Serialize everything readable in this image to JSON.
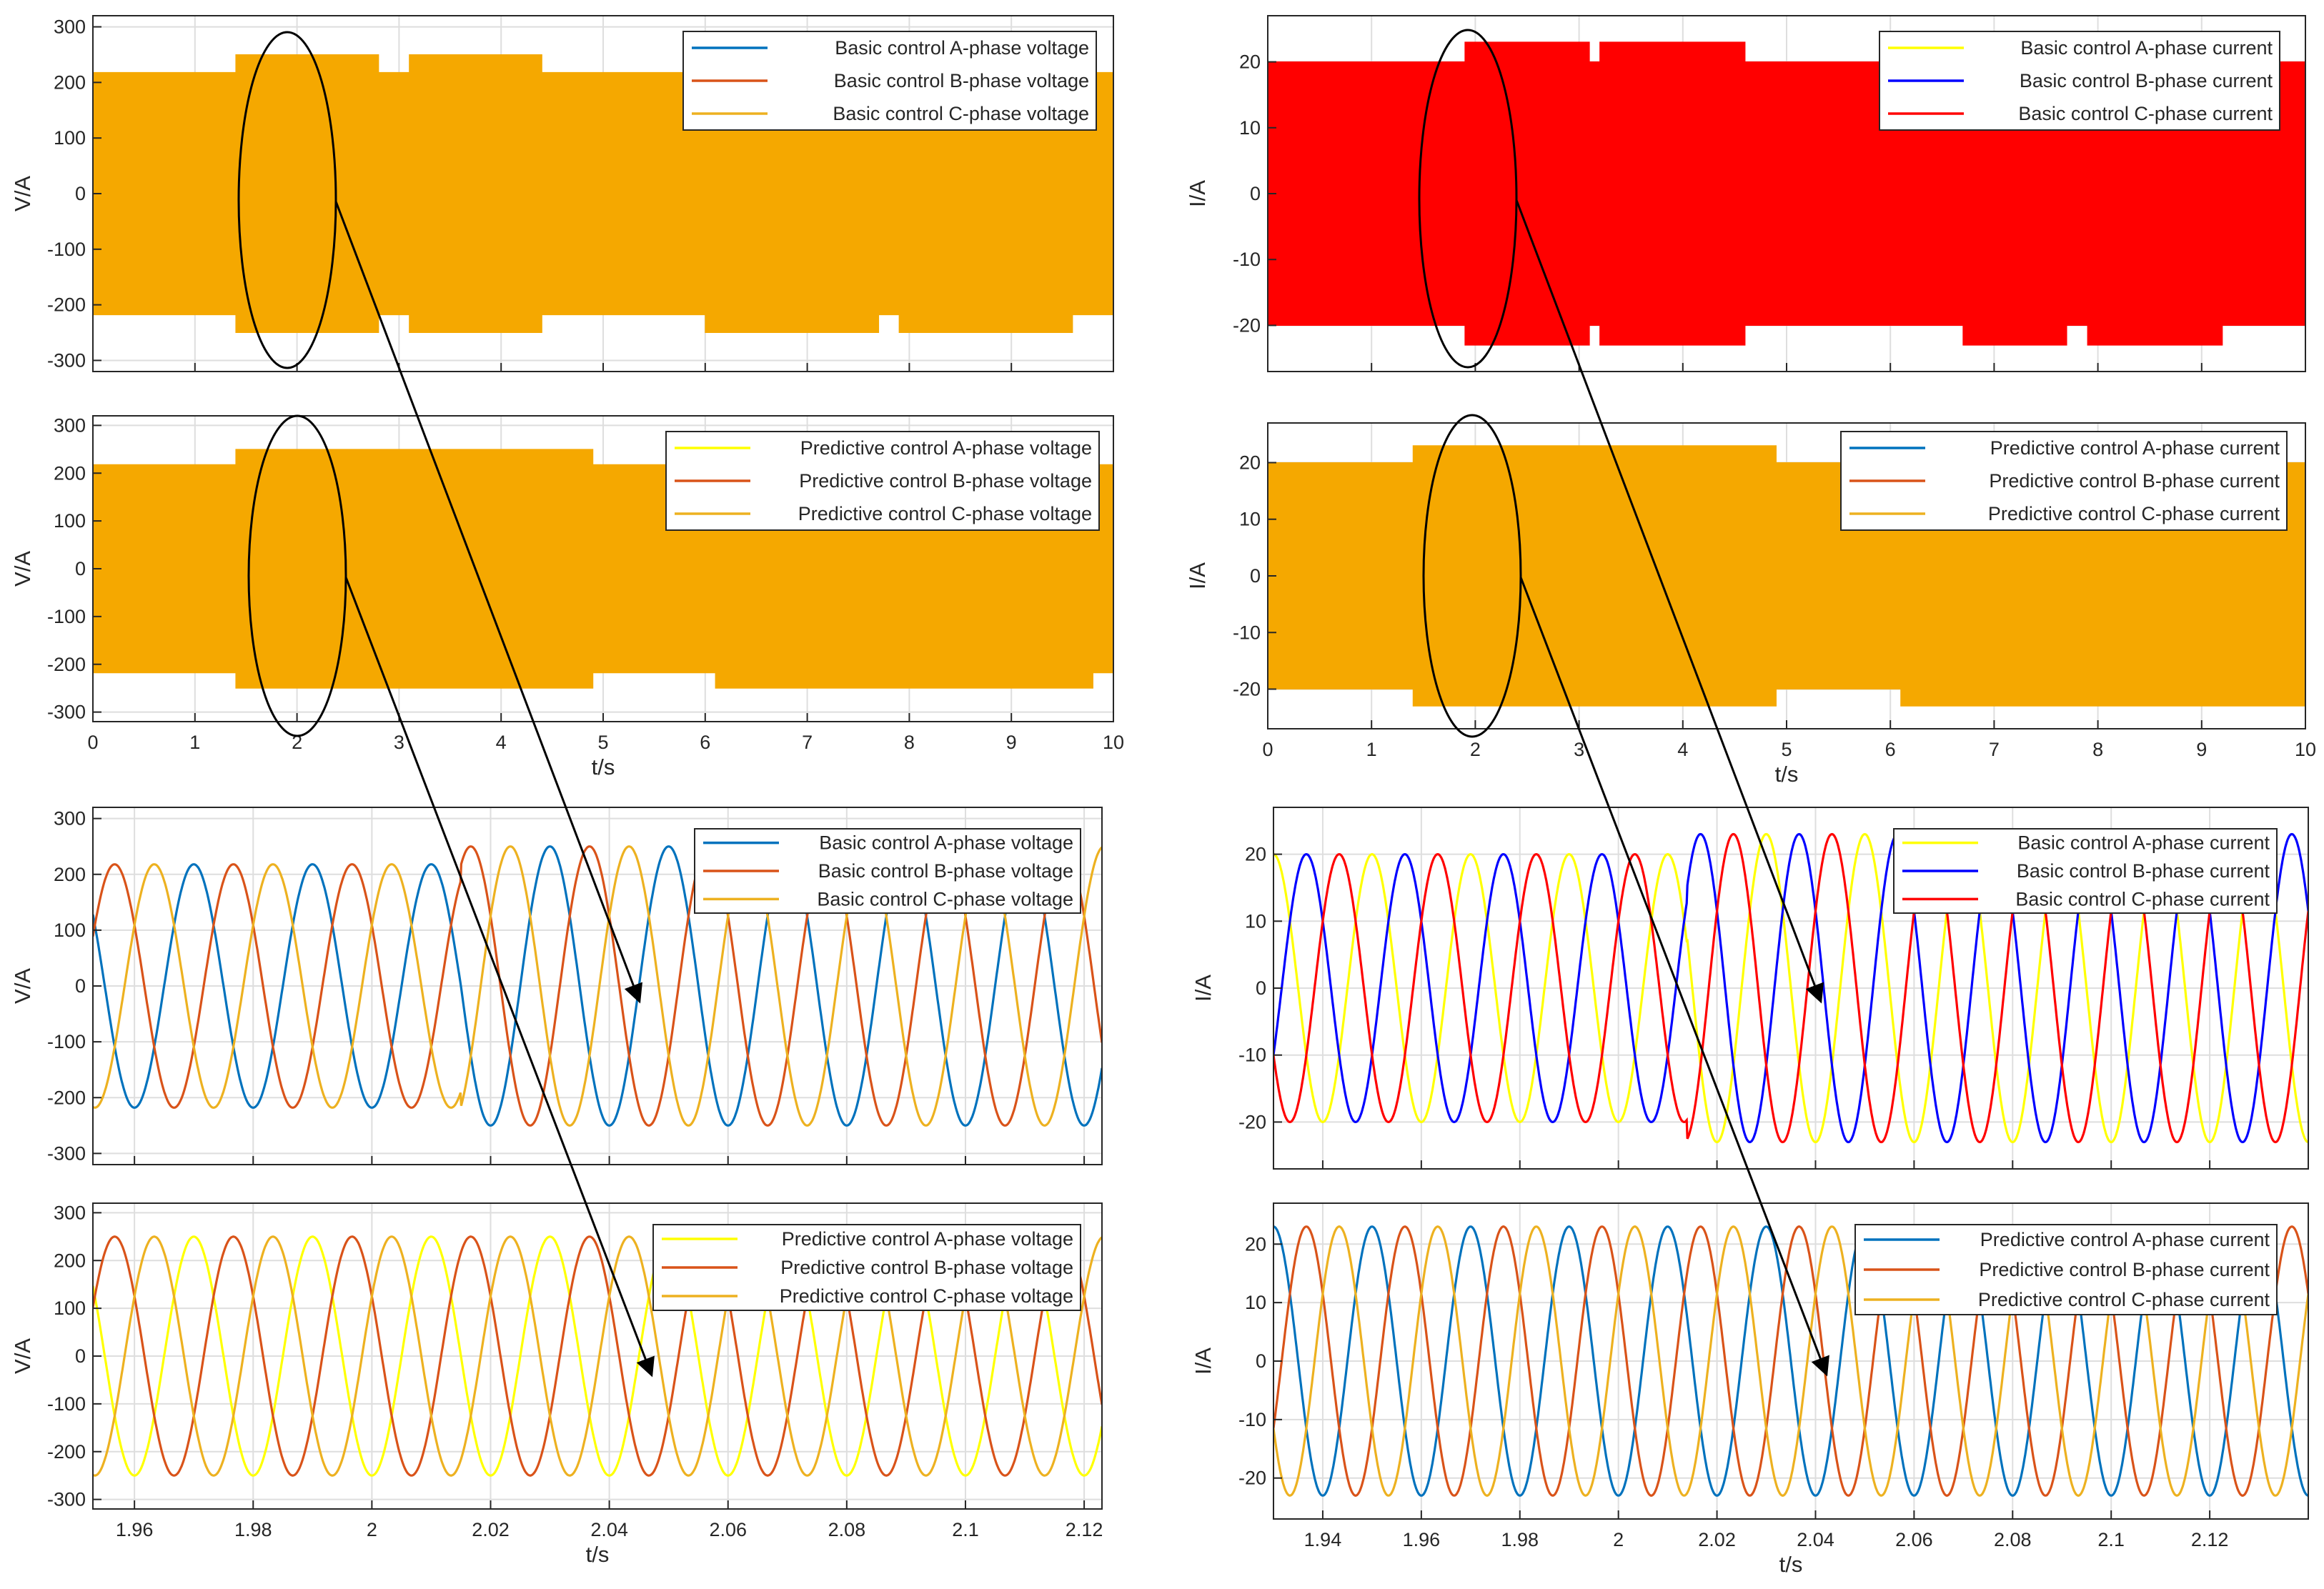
{
  "colors": {
    "blue": "#0072BD",
    "orange": "#D95319",
    "amber": "#EDB120",
    "yellow": "#FFFF00",
    "pure_blue": "#0000FF",
    "red": "#FF0000",
    "filled_orange": "#F5A800"
  },
  "chart_data": [
    {
      "id": "voltage-basic-full",
      "type": "line",
      "xlim": [
        0,
        10
      ],
      "ylim": [
        -320,
        320
      ],
      "yticks": [
        -300,
        -200,
        -100,
        0,
        100,
        200,
        300
      ],
      "xticks": [
        0,
        1,
        2,
        3,
        4,
        5,
        6,
        7,
        8,
        9,
        10
      ],
      "show_xticklabels": false,
      "ylabel": "V/A",
      "xlabel": "",
      "fill_color": "#F5A800",
      "envelope": {
        "x": [
          0,
          1.4,
          1.4,
          2.8,
          2.8,
          3.1,
          3.1,
          4.4,
          4.4,
          6.0,
          6.0,
          7.7,
          7.7,
          7.9,
          7.9,
          9.6,
          9.6,
          10
        ],
        "upper": [
          218,
          218,
          250,
          250,
          218,
          218,
          250,
          250,
          218,
          218,
          218,
          218,
          218,
          218,
          218,
          218,
          218,
          218
        ],
        "lower": [
          -218,
          -218,
          -250,
          -250,
          -218,
          -218,
          -250,
          -250,
          -218,
          -218,
          -250,
          -250,
          -218,
          -218,
          -250,
          -250,
          -218,
          -218
        ]
      },
      "legend": [
        {
          "label": "Basic control A-phase voltage",
          "color": "#0072BD"
        },
        {
          "label": "Basic control B-phase voltage",
          "color": "#D95319"
        },
        {
          "label": "Basic control C-phase voltage",
          "color": "#EDB120"
        }
      ]
    },
    {
      "id": "voltage-predictive-full",
      "type": "line",
      "xlim": [
        0,
        10
      ],
      "ylim": [
        -320,
        320
      ],
      "yticks": [
        -300,
        -200,
        -100,
        0,
        100,
        200,
        300
      ],
      "xticks": [
        0,
        1,
        2,
        3,
        4,
        5,
        6,
        7,
        8,
        9,
        10
      ],
      "show_xticklabels": true,
      "ylabel": "V/A",
      "xlabel": "t/s",
      "fill_color": "#F5A800",
      "envelope": {
        "x": [
          0,
          1.4,
          1.4,
          4.9,
          4.9,
          6.1,
          6.1,
          9.8,
          9.8,
          10
        ],
        "upper": [
          218,
          218,
          250,
          250,
          218,
          218,
          218,
          218,
          218,
          218
        ],
        "lower": [
          -218,
          -218,
          -250,
          -250,
          -218,
          -218,
          -250,
          -250,
          -218,
          -218
        ]
      },
      "legend": [
        {
          "label": "Predictive control A-phase voltage",
          "color": "#FFFF00"
        },
        {
          "label": "Predictive control B-phase voltage",
          "color": "#D95319"
        },
        {
          "label": "Predictive control C-phase voltage",
          "color": "#EDB120"
        }
      ]
    },
    {
      "id": "voltage-basic-zoom",
      "type": "line",
      "xlim": [
        1.953,
        2.123
      ],
      "ylim": [
        -320,
        320
      ],
      "yticks": [
        -300,
        -200,
        -100,
        0,
        100,
        200,
        300
      ],
      "xticks": [
        1.96,
        1.98,
        2.0,
        2.02,
        2.04,
        2.06,
        2.08,
        2.1,
        2.12
      ],
      "show_xticklabels": false,
      "ylabel": "V/A",
      "xlabel": "",
      "frequency_hz": 50,
      "step_time": 2.015,
      "amplitude_before": 218,
      "amplitude_after": 250,
      "series": [
        {
          "name": "Basic control A-phase voltage",
          "color": "#0072BD",
          "phase_deg": -90
        },
        {
          "name": "Basic control B-phase voltage",
          "color": "#D95319",
          "phase_deg": 150
        },
        {
          "name": "Basic control C-phase voltage",
          "color": "#EDB120",
          "phase_deg": 30
        }
      ]
    },
    {
      "id": "voltage-predictive-zoom",
      "type": "line",
      "xlim": [
        1.953,
        2.123
      ],
      "ylim": [
        -320,
        320
      ],
      "yticks": [
        -300,
        -200,
        -100,
        0,
        100,
        200,
        300
      ],
      "xticks": [
        1.96,
        1.98,
        2.0,
        2.02,
        2.04,
        2.06,
        2.08,
        2.1,
        2.12
      ],
      "show_xticklabels": true,
      "ylabel": "V/A",
      "xlabel": "t/s",
      "frequency_hz": 50,
      "step_time": 1.9,
      "amplitude_before": 250,
      "amplitude_after": 250,
      "series": [
        {
          "name": "Predictive control A-phase voltage",
          "color": "#FFFF00",
          "phase_deg": -90
        },
        {
          "name": "Predictive control B-phase voltage",
          "color": "#D95319",
          "phase_deg": 150
        },
        {
          "name": "Predictive control C-phase voltage",
          "color": "#EDB120",
          "phase_deg": 30
        }
      ]
    },
    {
      "id": "current-basic-full",
      "type": "line",
      "xlim": [
        0,
        10
      ],
      "ylim": [
        -27,
        27
      ],
      "yticks": [
        -20,
        -10,
        0,
        10,
        20
      ],
      "xticks": [
        0,
        1,
        2,
        3,
        4,
        5,
        6,
        7,
        8,
        9,
        10
      ],
      "show_xticklabels": false,
      "ylabel": "I/A",
      "xlabel": "",
      "fill_color": "#FF0000",
      "envelope": {
        "x": [
          0,
          1.9,
          1.9,
          3.1,
          3.1,
          3.2,
          3.2,
          4.6,
          4.6,
          6.7,
          6.7,
          7.7,
          7.7,
          7.9,
          7.9,
          9.2,
          9.2,
          10
        ],
        "upper": [
          20,
          20,
          23,
          23,
          20,
          20,
          23,
          23,
          20,
          20,
          20,
          20,
          20,
          20,
          20,
          20,
          20,
          20
        ],
        "lower": [
          -20,
          -20,
          -23,
          -23,
          -20,
          -20,
          -23,
          -23,
          -20,
          -20,
          -23,
          -23,
          -20,
          -20,
          -23,
          -23,
          -20,
          -20
        ]
      },
      "legend": [
        {
          "label": "Basic control A-phase current",
          "color": "#FFFF00"
        },
        {
          "label": "Basic control B-phase current",
          "color": "#0000FF"
        },
        {
          "label": "Basic control C-phase current",
          "color": "#FF0000"
        }
      ]
    },
    {
      "id": "current-predictive-full",
      "type": "line",
      "xlim": [
        0,
        10
      ],
      "ylim": [
        -27,
        27
      ],
      "yticks": [
        -20,
        -10,
        0,
        10,
        20
      ],
      "xticks": [
        0,
        1,
        2,
        3,
        4,
        5,
        6,
        7,
        8,
        9,
        10
      ],
      "show_xticklabels": true,
      "ylabel": "I/A",
      "xlabel": "t/s",
      "fill_color": "#F5A800",
      "envelope": {
        "x": [
          0,
          1.4,
          1.4,
          4.9,
          4.9,
          6.1,
          6.1,
          10
        ],
        "upper": [
          20,
          20,
          23,
          23,
          20,
          20,
          20,
          20
        ],
        "lower": [
          -20,
          -20,
          -23,
          -23,
          -20,
          -20,
          -23,
          -23
        ]
      },
      "legend": [
        {
          "label": "Predictive control A-phase current",
          "color": "#0072BD"
        },
        {
          "label": "Predictive control B-phase current",
          "color": "#D95319"
        },
        {
          "label": "Predictive control C-phase current",
          "color": "#EDB120"
        }
      ]
    },
    {
      "id": "current-basic-zoom",
      "type": "line",
      "xlim": [
        1.93,
        2.14
      ],
      "ylim": [
        -27,
        27
      ],
      "yticks": [
        -20,
        -10,
        0,
        10,
        20
      ],
      "xticks": [
        1.94,
        1.96,
        1.98,
        2.0,
        2.02,
        2.04,
        2.06,
        2.08,
        2.1,
        2.12
      ],
      "show_xticklabels": false,
      "ylabel": "I/A",
      "xlabel": "",
      "frequency_hz": 50,
      "step_time": 2.014,
      "amplitude_before": 20,
      "amplitude_after": 23,
      "series": [
        {
          "name": "Basic control A-phase current",
          "color": "#FFFF00",
          "phase_deg": -90
        },
        {
          "name": "Basic control B-phase current",
          "color": "#0000FF",
          "phase_deg": 150
        },
        {
          "name": "Basic control C-phase current",
          "color": "#FF0000",
          "phase_deg": 30
        }
      ]
    },
    {
      "id": "current-predictive-zoom",
      "type": "line",
      "xlim": [
        1.93,
        2.14
      ],
      "ylim": [
        -27,
        27
      ],
      "yticks": [
        -20,
        -10,
        0,
        10,
        20
      ],
      "xticks": [
        1.94,
        1.96,
        1.98,
        2.0,
        2.02,
        2.04,
        2.06,
        2.08,
        2.1,
        2.12
      ],
      "show_xticklabels": true,
      "ylabel": "I/A",
      "xlabel": "t/s",
      "frequency_hz": 50,
      "step_time": 1.9,
      "amplitude_before": 23,
      "amplitude_after": 23,
      "series": [
        {
          "name": "Predictive control A-phase current",
          "color": "#0072BD",
          "phase_deg": -90
        },
        {
          "name": "Predictive control B-phase current",
          "color": "#D95319",
          "phase_deg": 150
        },
        {
          "name": "Predictive control C-phase current",
          "color": "#EDB120",
          "phase_deg": 30
        }
      ]
    }
  ]
}
